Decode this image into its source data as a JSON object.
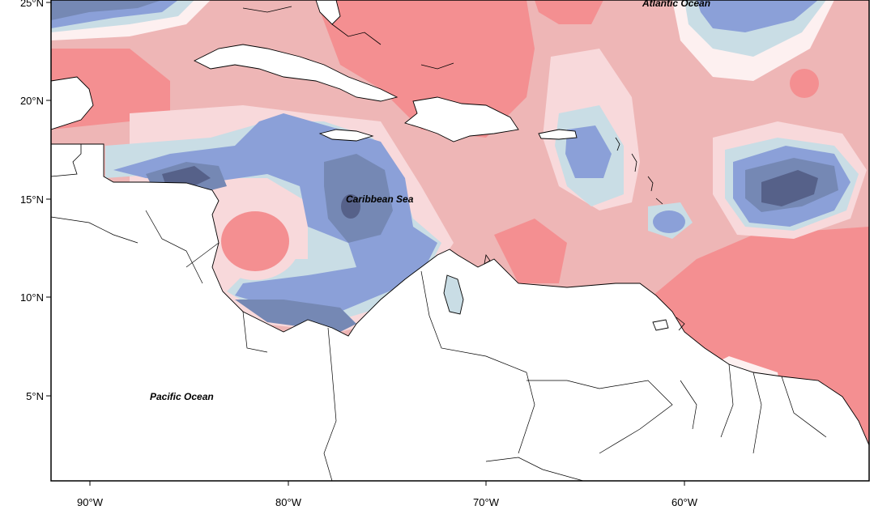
{
  "map": {
    "labels": {
      "atlantic": "Atlantic Ocean",
      "caribbean": "Caribbean Sea",
      "pacific": "Pacific Ocean"
    },
    "lat_ticks": [
      "25°N",
      "20°N",
      "15°N",
      "10°N",
      "5°N"
    ],
    "lon_ticks": [
      "90°W",
      "80°W",
      "70°W",
      "60°W"
    ],
    "colors": {
      "strong_warm": "#f48f91",
      "warm": "#eeb6b6",
      "light_warm": "#f8d9db",
      "neutral": "#fdf0f0",
      "light_cool": "#c9dde5",
      "cool": "#8ba0d8",
      "strong_cool": "#7588b4",
      "deep_cool": "#566189",
      "land": "#ffffff",
      "coast": "#000000"
    }
  }
}
